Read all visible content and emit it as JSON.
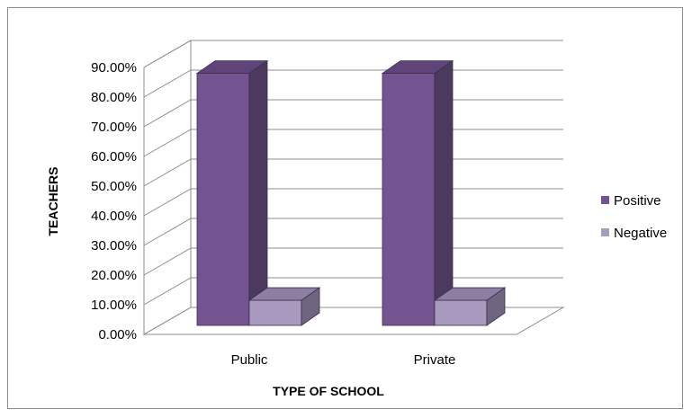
{
  "chart_data": {
    "type": "bar",
    "style": "3d-clustered-column",
    "categories": [
      "Public",
      "Private"
    ],
    "series": [
      {
        "name": "Positive",
        "values": [
          88.0,
          88.0
        ],
        "color": "#735390",
        "side_color": "#4b3a5e",
        "top_color": "#5e4478"
      },
      {
        "name": "Negative",
        "values": [
          11.5,
          11.5
        ],
        "color": "#a99bbf",
        "side_color": "#6f6580",
        "top_color": "#8c7fa3"
      }
    ],
    "y_ticks": [
      "0.00%",
      "10.00%",
      "20.00%",
      "30.00%",
      "40.00%",
      "50.00%",
      "60.00%",
      "70.00%",
      "80.00%",
      "90.00%"
    ],
    "ylim": [
      0,
      90
    ],
    "xlabel": "TYPE OF SCHOOL",
    "ylabel": "TEACHERS",
    "grid": true,
    "legend_position": "right"
  }
}
